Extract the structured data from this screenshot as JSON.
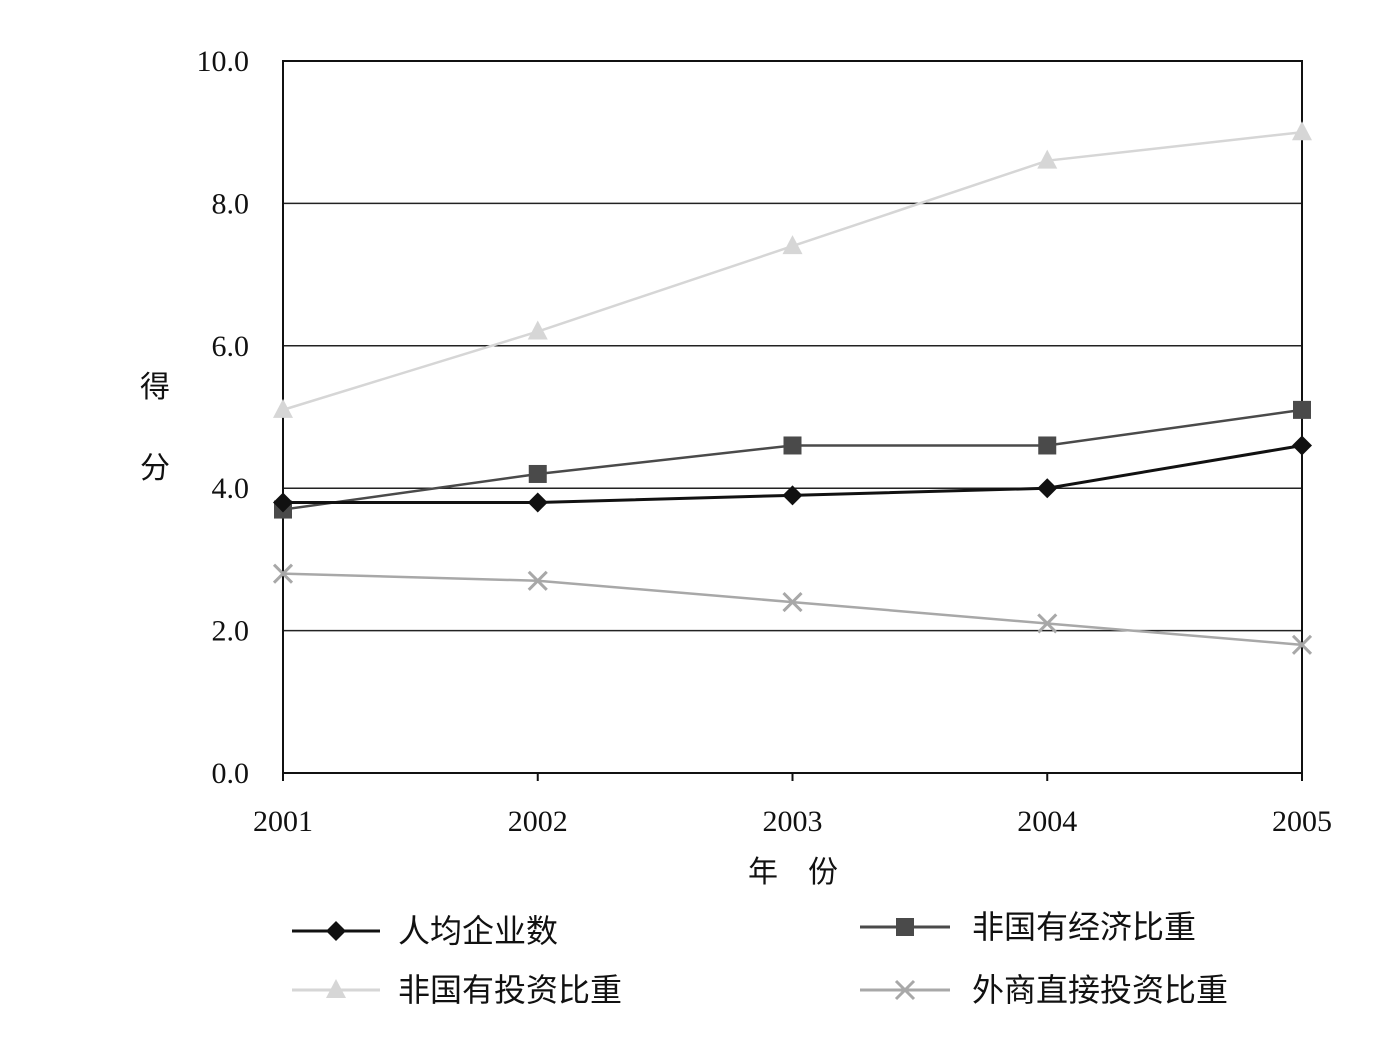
{
  "chart_data": {
    "type": "line",
    "title": "",
    "xlabel": "年　份",
    "ylabel": "得分",
    "ylabel_chars": [
      "得",
      "分"
    ],
    "categories": [
      "2001",
      "2002",
      "2003",
      "2004",
      "2005"
    ],
    "ylim": [
      0,
      10
    ],
    "yticks": [
      "0.0",
      "2.0",
      "4.0",
      "6.0",
      "8.0",
      "10.0"
    ],
    "grid": true,
    "legend_position": "bottom",
    "series": [
      {
        "name": "人均企业数",
        "values": [
          3.8,
          3.8,
          3.9,
          4.0,
          4.6
        ],
        "color": "#111111",
        "marker": "diamond"
      },
      {
        "name": "非国有经济比重",
        "values": [
          3.7,
          4.2,
          4.6,
          4.6,
          5.1
        ],
        "color": "#4a4a4a",
        "marker": "square"
      },
      {
        "name": "非国有投资比重",
        "values": [
          5.1,
          6.2,
          7.4,
          8.6,
          9.0
        ],
        "color": "#d6d6d6",
        "marker": "triangle"
      },
      {
        "name": "外商直接投资比重",
        "values": [
          2.8,
          2.7,
          2.4,
          2.1,
          1.8
        ],
        "color": "#a8a8a8",
        "marker": "x"
      }
    ]
  }
}
